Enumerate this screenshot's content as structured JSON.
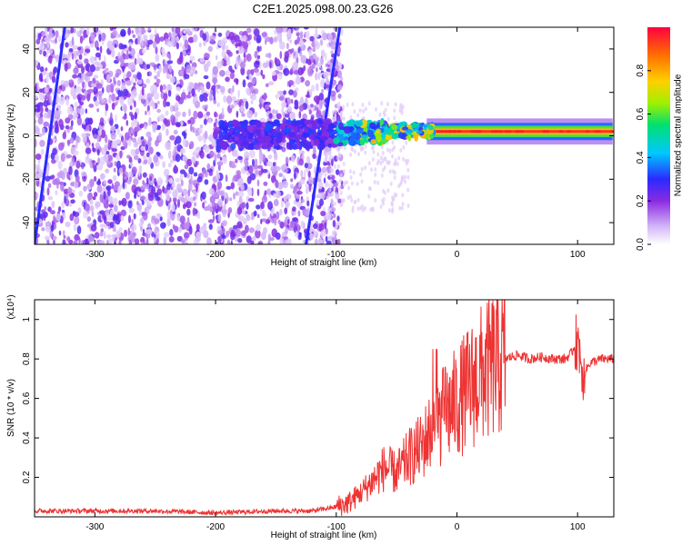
{
  "title": "C2E1.2025.098.00.23.G26",
  "chart_data": [
    {
      "type": "heatmap",
      "xlabel": "Height of straight line (km)",
      "ylabel": "Frequency (Hz)",
      "xlim": [
        -350,
        130
      ],
      "ylim": [
        -50,
        50
      ],
      "xticks": [
        -300,
        -200,
        -100,
        0,
        100
      ],
      "yticks": [
        -40,
        -20,
        0,
        20,
        40
      ],
      "colorbar": {
        "label": "Normalized spectral amplitude",
        "range": [
          0,
          1
        ],
        "ticks": [
          0.0,
          0.2,
          0.4,
          0.6,
          0.8
        ],
        "colormap": [
          "#ffffff",
          "#c9a8f5",
          "#7a1fe0",
          "#2020ff",
          "#00c8ff",
          "#00e070",
          "#a0f000",
          "#ffd000",
          "#ff7000",
          "#ff0040"
        ]
      },
      "features": {
        "noise_extent_height_km": [
          -350,
          -95
        ],
        "signal_band_height_km": [
          -200,
          130
        ],
        "signal_center_frequency_hz": [
          [
            -200,
            0
          ],
          [
            -100,
            1
          ],
          [
            -50,
            2
          ],
          [
            0,
            2
          ],
          [
            50,
            2
          ],
          [
            130,
            2
          ]
        ],
        "slanted_streaks": [
          {
            "from": [
              -350,
              -50
            ],
            "to": [
              -325,
              50
            ]
          },
          {
            "from": [
              -125,
              -50
            ],
            "to": [
              -97,
              50
            ]
          }
        ]
      }
    },
    {
      "type": "line",
      "xlabel": "Height of straight line (km)",
      "ylabel": "SNR (10 * v/v)",
      "y_scale_label": "(x10⁴)",
      "xlim": [
        -350,
        130
      ],
      "ylim": [
        0,
        1.1
      ],
      "xticks": [
        -300,
        -200,
        -100,
        0,
        100
      ],
      "yticks": [
        0.2,
        0.4,
        0.6,
        0.8,
        1
      ],
      "series": [
        {
          "color": "#ee3333",
          "x": [
            -350,
            -300,
            -250,
            -200,
            -150,
            -120,
            -100,
            -90,
            -80,
            -70,
            -60,
            -50,
            -40,
            -30,
            -20,
            -10,
            0,
            10,
            20,
            30,
            40,
            50,
            60,
            70,
            80,
            90,
            95,
            100,
            105,
            110,
            120,
            130
          ],
          "y": [
            0.03,
            0.03,
            0.03,
            0.02,
            0.03,
            0.03,
            0.05,
            0.07,
            0.12,
            0.18,
            0.25,
            0.22,
            0.3,
            0.35,
            0.45,
            0.52,
            0.58,
            0.65,
            0.72,
            0.77,
            0.8,
            0.82,
            0.8,
            0.81,
            0.8,
            0.8,
            0.83,
            0.9,
            0.72,
            0.78,
            0.8,
            0.8
          ]
        }
      ]
    }
  ]
}
